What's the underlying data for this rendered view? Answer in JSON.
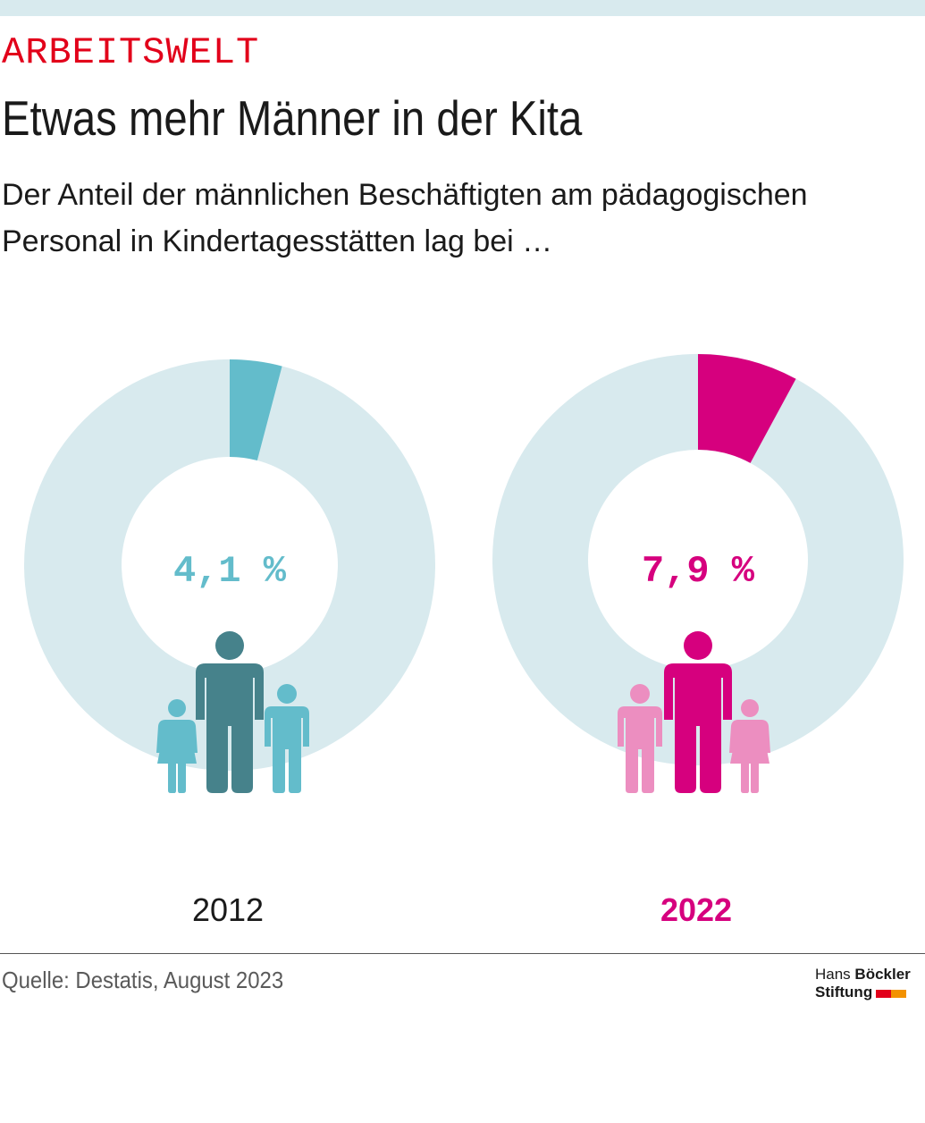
{
  "header": {
    "kicker": "ARBEITSWELT",
    "title": "Etwas mehr Männer in der Kita",
    "subtitle": "Der Anteil der männlichen Beschäftigten am pädagogischen Personal in Kindertagesstätten lag bei …"
  },
  "chart_data": {
    "type": "pie",
    "series": [
      {
        "year": "2012",
        "value": 4.1,
        "value_label": "4,1 %",
        "color": "#63bccb",
        "adult_color": "#46828b",
        "child_color": "#63bccb",
        "year_bold": false
      },
      {
        "year": "2022",
        "value": 7.9,
        "value_label": "7,9 %",
        "color": "#d6007e",
        "adult_color": "#d6007e",
        "child_color": "#ec8ec0",
        "year_bold": true
      }
    ],
    "ring_color": "#d8eaee"
  },
  "footer": {
    "source": "Quelle: Destatis, August 2023",
    "logo_line1_a": "Hans",
    "logo_line1_b": "Böckler",
    "logo_line2": "Stiftung",
    "logo_colors": [
      "#e2001a",
      "#f39200"
    ]
  }
}
